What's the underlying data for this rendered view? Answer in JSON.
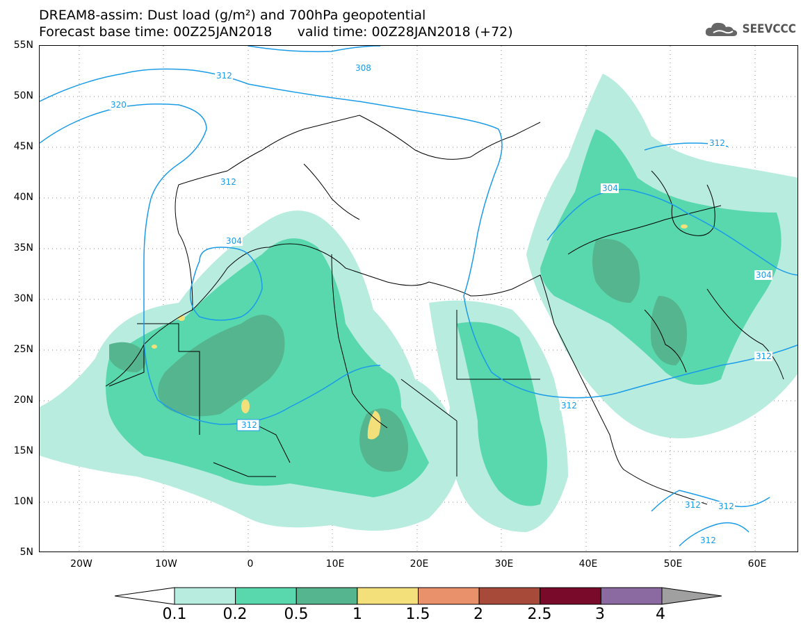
{
  "title": {
    "line1": "DREAM8-assim: Dust load (g/m²) and 700hPa geopotential",
    "line2": "Forecast base time: 00Z25JAN2018      valid time: 00Z28JAN2018 (+72)"
  },
  "logo": {
    "text": "SEEVCCC",
    "icon": "cloud-icon"
  },
  "lat_labels": [
    "55N",
    "50N",
    "45N",
    "40N",
    "35N",
    "30N",
    "25N",
    "20N",
    "15N",
    "10N",
    "5N"
  ],
  "lon_labels": [
    "20W",
    "10W",
    "0",
    "10E",
    "20E",
    "30E",
    "40E",
    "50E",
    "60E"
  ],
  "contour_labels": [
    "312",
    "308",
    "320",
    "312",
    "304",
    "312",
    "304",
    "312",
    "304",
    "312",
    "312",
    "312",
    "312",
    "312"
  ],
  "colorbar": {
    "levels": [
      "0.1",
      "0.2",
      "0.5",
      "1",
      "1.5",
      "2",
      "2.5",
      "3",
      "4"
    ],
    "colors": [
      "#b8ecdf",
      "#59d8ae",
      "#55b58e",
      "#f4e07a",
      "#e8916a",
      "#a84a3a",
      "#7a0a2a",
      "#8a6aa0"
    ],
    "under_color": "#ffffff",
    "over_color": "#a0a0a0"
  },
  "colors": {
    "contour": "#1a9be8",
    "coast": "#000000",
    "dust_light": "#b8ecdf",
    "dust_mid": "#59d8ae",
    "dust_dark": "#55b58e",
    "dust_yellow": "#f4e07a"
  }
}
